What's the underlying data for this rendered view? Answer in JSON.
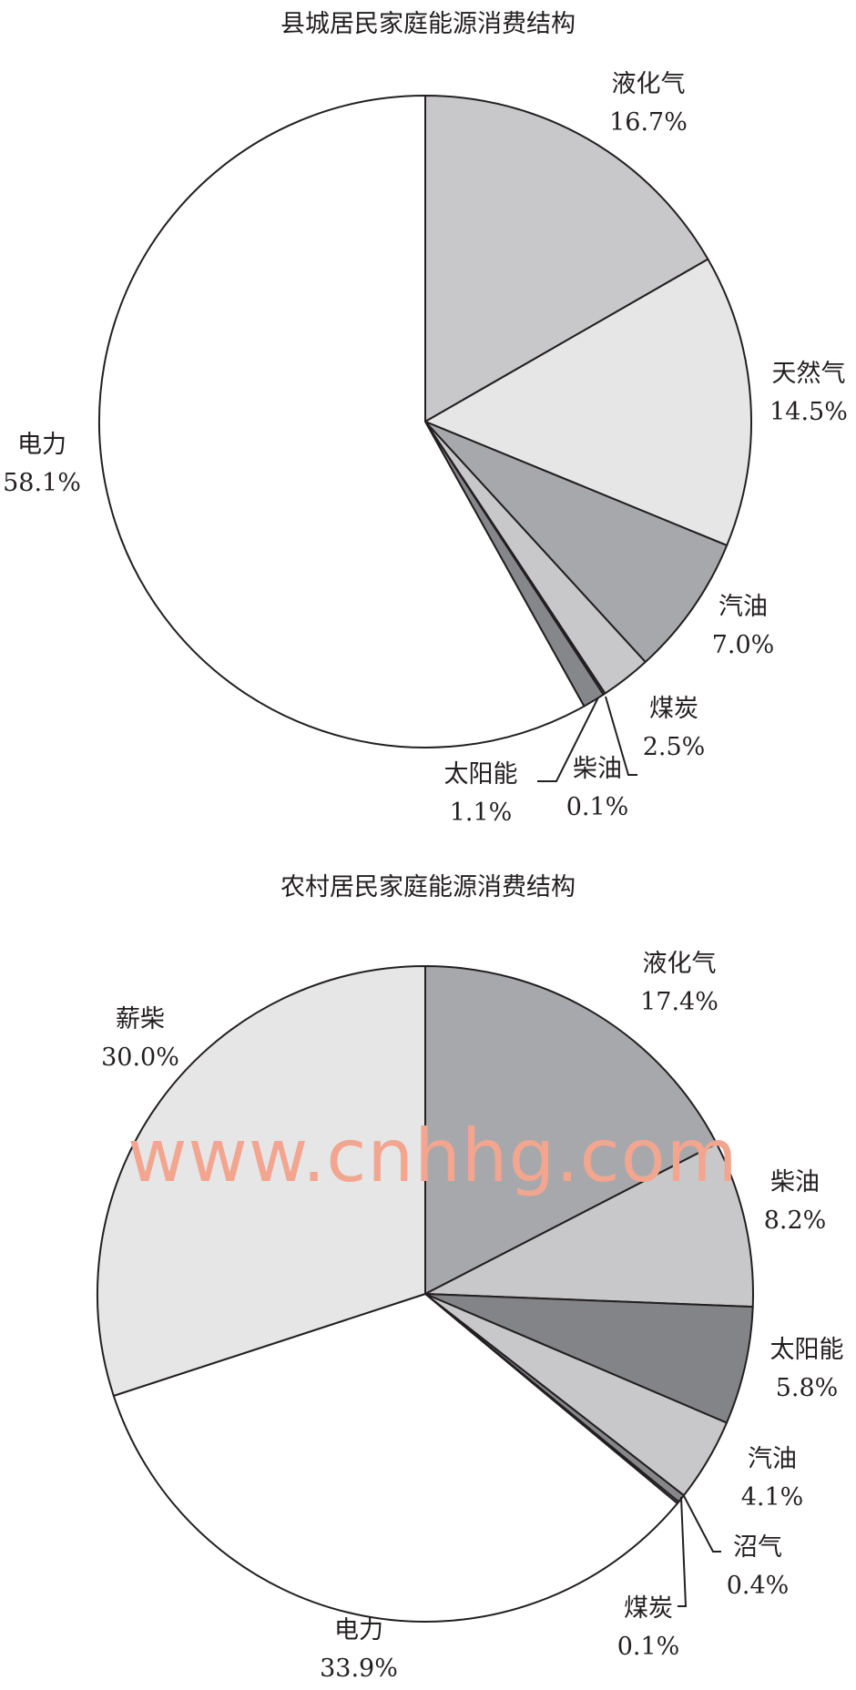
{
  "chart_data": [
    {
      "type": "pie",
      "title": "县城居民家庭能源消费结构",
      "unit": "%",
      "start": "12 o'clock, clockwise",
      "slices": [
        {
          "label": "液化气",
          "value": 16.7,
          "color": "#c8c8ca"
        },
        {
          "label": "天然气",
          "value": 14.5,
          "color": "#e6e6e7"
        },
        {
          "label": "汽油",
          "value": 7.0,
          "color": "#a7a8ab"
        },
        {
          "label": "煤炭",
          "value": 2.5,
          "color": "#c8c8ca"
        },
        {
          "label": "柴油",
          "value": 0.1,
          "color": "#a7a8ab"
        },
        {
          "label": "太阳能",
          "value": 1.1,
          "color": "#86878a"
        },
        {
          "label": "电力",
          "value": 58.1,
          "color": "#ffffff"
        }
      ],
      "value_labels": [
        "16.7%",
        "14.5%",
        "7.0%",
        "2.5%",
        "0.1%",
        "1.1%",
        "58.1%"
      ]
    },
    {
      "type": "pie",
      "title": "农村居民家庭能源消费结构",
      "unit": "%",
      "start": "12 o'clock, clockwise",
      "slices": [
        {
          "label": "液化气",
          "value": 17.4,
          "color": "#a7a8ab"
        },
        {
          "label": "柴油",
          "value": 8.2,
          "color": "#c8c8ca"
        },
        {
          "label": "太阳能",
          "value": 5.8,
          "color": "#838487"
        },
        {
          "label": "汽油",
          "value": 4.1,
          "color": "#c8c8ca"
        },
        {
          "label": "沼气",
          "value": 0.4,
          "color": "#86878a"
        },
        {
          "label": "煤炭",
          "value": 0.1,
          "color": "#c8c8ca"
        },
        {
          "label": "电力",
          "value": 33.9,
          "color": "#ffffff"
        },
        {
          "label": "薪柴",
          "value": 30.0,
          "color": "#e6e6e7"
        }
      ],
      "value_labels": [
        "17.4%",
        "8.2%",
        "5.8%",
        "4.1%",
        "0.4%",
        "0.1%",
        "33.9%",
        "30.0%"
      ]
    }
  ],
  "watermark": "www.cnhhg.com"
}
